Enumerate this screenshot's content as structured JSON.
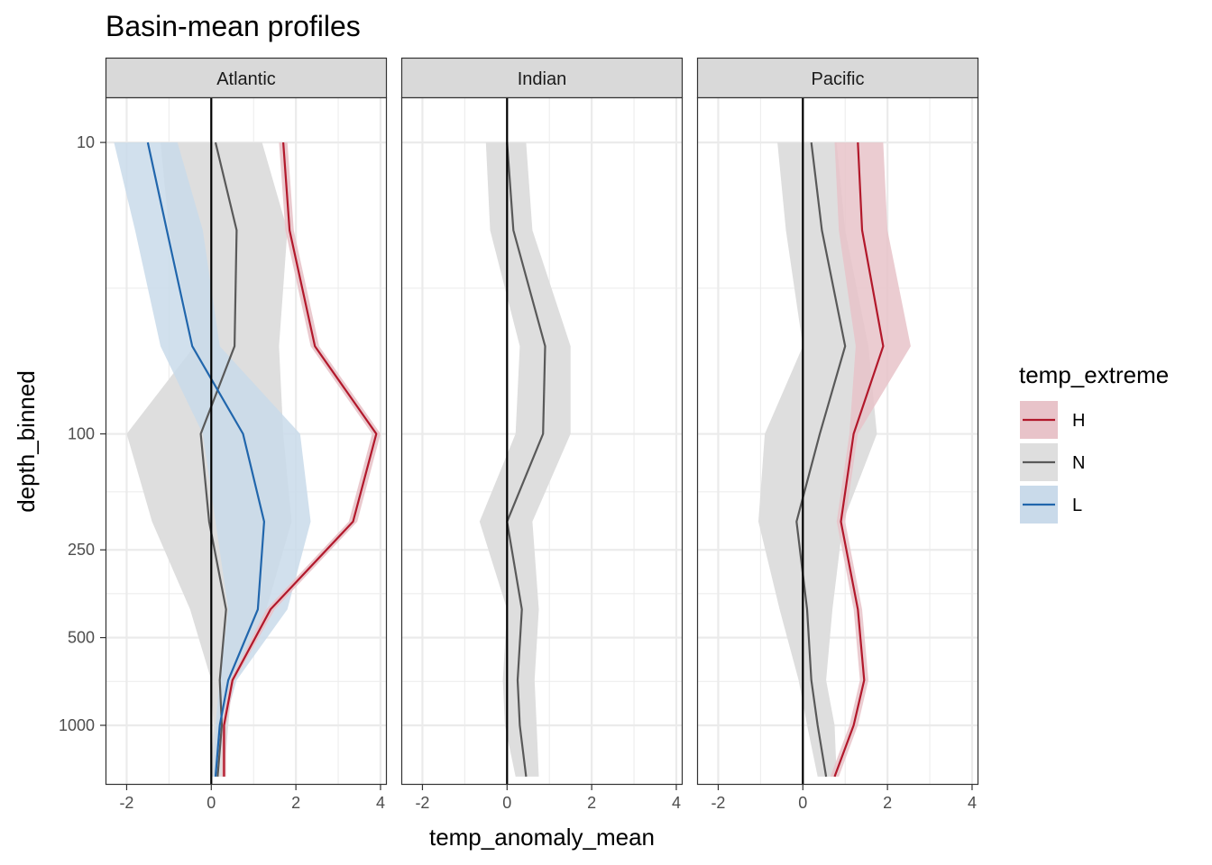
{
  "chart_data": {
    "type": "line",
    "title": "Basin-mean profiles",
    "xlabel": "temp_anomaly_mean",
    "ylabel": "depth_binned",
    "xlim": [
      -2.5,
      4.15
    ],
    "x_ticks": [
      -2,
      0,
      2,
      4
    ],
    "x_tick_labels": [
      "-2",
      "0",
      "2",
      "4"
    ],
    "y_scale": "log",
    "ylim": [
      1600,
      7
    ],
    "y_ticks": [
      10,
      100,
      250,
      500,
      1000
    ],
    "y_tick_labels": [
      "10",
      "100",
      "250",
      "500",
      "1000"
    ],
    "depths": [
      10,
      20,
      50,
      100,
      200,
      400,
      700,
      1000,
      1500
    ],
    "reference_line_x": 0,
    "grid": true,
    "legend": {
      "title": "temp_extreme",
      "position": "right",
      "entries": [
        {
          "label": "H",
          "color": "#b2182b",
          "fill": "#e8c3c9"
        },
        {
          "label": "N",
          "color": "#595959",
          "fill": "#dedede"
        },
        {
          "label": "L",
          "color": "#2166ac",
          "fill": "#c9daea"
        }
      ]
    },
    "panels": [
      {
        "name": "Atlantic",
        "series": [
          {
            "name": "N",
            "color": "#595959",
            "fill": "#dedede",
            "fill_opacity": 1,
            "mean": [
              0.1,
              0.6,
              0.55,
              -0.25,
              -0.05,
              0.35,
              0.2,
              0.25,
              0.15
            ],
            "lower": [
              -1.2,
              -1.0,
              -0.4,
              -2.0,
              -1.4,
              -0.5,
              0.0,
              0.05,
              0.0
            ],
            "upper": [
              1.2,
              1.8,
              1.6,
              1.7,
              1.9,
              1.3,
              0.5,
              0.4,
              0.3
            ]
          },
          {
            "name": "L",
            "color": "#2166ac",
            "fill": "#c9daea",
            "fill_opacity": 0.85,
            "mean": [
              -1.5,
              -1.05,
              -0.45,
              0.75,
              1.25,
              1.1,
              0.4,
              0.2,
              0.1
            ],
            "lower": [
              -2.3,
              -1.8,
              -1.2,
              -0.2,
              0.1,
              0.4,
              0.2,
              0.1,
              0.05
            ],
            "upper": [
              -0.8,
              -0.2,
              0.2,
              2.1,
              2.35,
              1.8,
              0.6,
              0.3,
              0.15
            ]
          },
          {
            "name": "H",
            "color": "#b2182b",
            "fill": "#e8c3c9",
            "fill_opacity": 0.9,
            "mean": [
              1.7,
              1.85,
              2.45,
              3.9,
              3.35,
              1.4,
              0.5,
              0.3,
              0.3
            ],
            "lower": [
              1.6,
              1.75,
              2.35,
              3.8,
              3.25,
              1.3,
              0.45,
              0.25,
              0.25
            ],
            "upper": [
              1.8,
              1.95,
              2.55,
              4.0,
              3.45,
              1.5,
              0.55,
              0.35,
              0.35
            ]
          }
        ]
      },
      {
        "name": "Indian",
        "series": [
          {
            "name": "N",
            "color": "#595959",
            "fill": "#dedede",
            "fill_opacity": 1,
            "mean": [
              0.0,
              0.15,
              0.9,
              0.85,
              0.0,
              0.35,
              0.25,
              0.3,
              0.45
            ],
            "lower": [
              -0.5,
              -0.4,
              0.3,
              0.2,
              -0.65,
              0.0,
              -0.1,
              -0.05,
              0.2
            ],
            "upper": [
              0.45,
              0.6,
              1.5,
              1.5,
              0.6,
              0.75,
              0.65,
              0.7,
              0.75
            ]
          }
        ]
      },
      {
        "name": "Pacific",
        "series": [
          {
            "name": "N",
            "color": "#595959",
            "fill": "#dedede",
            "fill_opacity": 1,
            "mean": [
              0.2,
              0.45,
              1.0,
              0.4,
              -0.15,
              0.1,
              0.2,
              0.35,
              0.55
            ],
            "lower": [
              -0.6,
              -0.4,
              0.0,
              -0.9,
              -1.05,
              -0.55,
              -0.1,
              0.1,
              0.35
            ],
            "upper": [
              0.8,
              1.0,
              1.55,
              1.75,
              0.95,
              0.7,
              0.55,
              0.75,
              0.8
            ]
          },
          {
            "name": "H",
            "color": "#b2182b",
            "fill": "#e8c3c9",
            "fill_opacity": 0.85,
            "mean": [
              1.3,
              1.4,
              1.9,
              1.2,
              0.9,
              1.3,
              1.45,
              1.2,
              0.75
            ],
            "lower": [
              0.75,
              0.85,
              1.25,
              1.1,
              0.8,
              1.2,
              1.35,
              1.1,
              0.65
            ],
            "upper": [
              1.9,
              2.0,
              2.55,
              1.3,
              1.0,
              1.4,
              1.55,
              1.3,
              0.85
            ]
          }
        ]
      }
    ]
  }
}
